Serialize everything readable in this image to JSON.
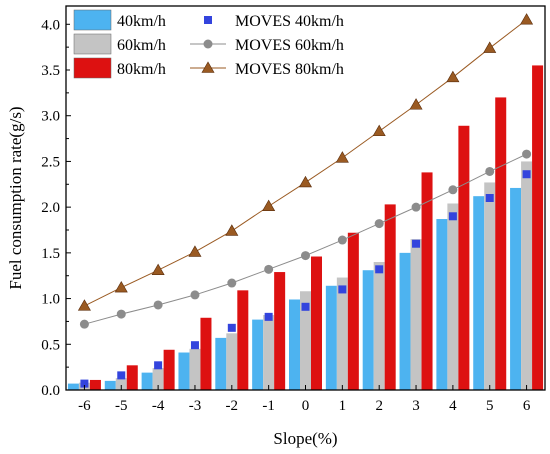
{
  "chart_data": {
    "type": "bar",
    "xlabel": "Slope(%)",
    "ylabel": "Fuel consumption rate(g/s)",
    "ylim": [
      0,
      4.2
    ],
    "yticks": [
      "0.0",
      "0.5",
      "1.0",
      "1.5",
      "2.0",
      "2.5",
      "3.0",
      "3.5",
      "4.0"
    ],
    "categories": [
      "-6",
      "-5",
      "-4",
      "-3",
      "-2",
      "-1",
      "0",
      "1",
      "2",
      "3",
      "4",
      "5",
      "6"
    ],
    "bar_series": [
      {
        "name": "40km/h",
        "color": "#4db3f0",
        "values": [
          0.07,
          0.1,
          0.19,
          0.41,
          0.57,
          0.77,
          0.99,
          1.14,
          1.31,
          1.5,
          1.87,
          2.12,
          2.21
        ]
      },
      {
        "name": "60km/h",
        "color": "#c4c4c4",
        "values": [
          0.08,
          0.13,
          0.24,
          0.45,
          0.62,
          0.82,
          1.08,
          1.23,
          1.4,
          1.65,
          2.04,
          2.27,
          2.5
        ]
      },
      {
        "name": "80km/h",
        "color": "#dd1111",
        "values": [
          0.11,
          0.27,
          0.44,
          0.79,
          1.09,
          1.29,
          1.46,
          1.72,
          2.03,
          2.38,
          2.89,
          3.2,
          3.55
        ]
      }
    ],
    "line_series": [
      {
        "name": "MOVES 40km/h",
        "color": "#3344dd",
        "marker": "square",
        "values": [
          0.07,
          0.16,
          0.27,
          0.49,
          0.68,
          0.8,
          0.91,
          1.1,
          1.32,
          1.6,
          1.9,
          2.1,
          2.36
        ]
      },
      {
        "name": "MOVES 60km/h",
        "color": "#8c8c8c",
        "marker": "circle",
        "values": [
          0.72,
          0.83,
          0.93,
          1.04,
          1.17,
          1.32,
          1.47,
          1.64,
          1.82,
          2.0,
          2.19,
          2.39,
          2.58
        ]
      },
      {
        "name": "MOVES 80km/h",
        "color": "#9a5a22",
        "marker": "triangle",
        "values": [
          0.92,
          1.12,
          1.31,
          1.51,
          1.74,
          2.01,
          2.27,
          2.54,
          2.83,
          3.12,
          3.42,
          3.74,
          4.05
        ]
      }
    ],
    "legend_position": "top-left",
    "grid": false
  }
}
